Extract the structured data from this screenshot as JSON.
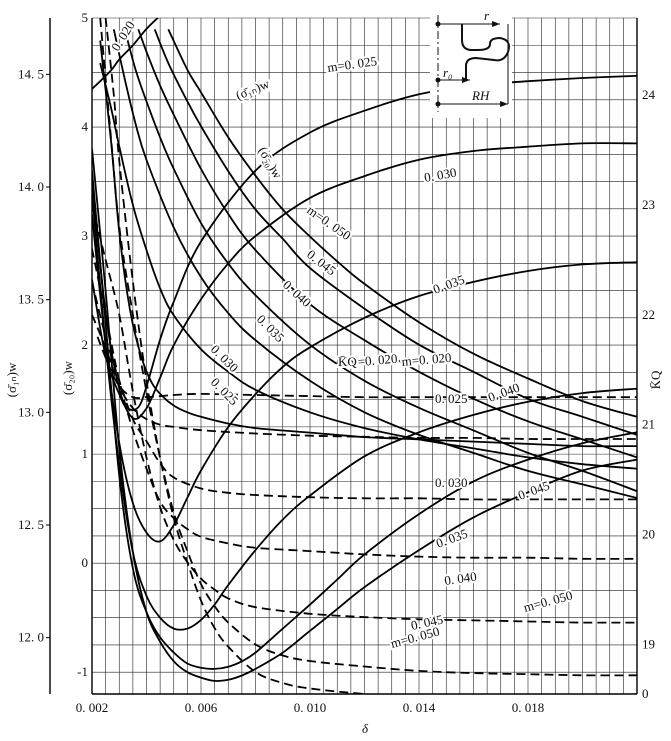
{
  "chart_data": {
    "type": "line",
    "x": {
      "label": "δ",
      "range": [
        0.002,
        0.022
      ],
      "ticks": [
        0.002,
        0.006,
        0.01,
        0.014,
        0.018
      ],
      "tick_labels": [
        "0. 002",
        "0. 006",
        "0. 010",
        "0. 014",
        "0. 018"
      ]
    },
    "axes": {
      "sigma_1n": {
        "label": "(σ̄₁ₙ)w",
        "range": [
          11.75,
          14.75
        ],
        "ticks": [
          12.0,
          12.5,
          13.0,
          13.5,
          14.0,
          14.5
        ],
        "tick_labels": [
          "12. 0",
          "12. 5",
          "13. 0",
          "13. 5",
          "14. 0",
          "14. 5"
        ]
      },
      "sigma_20": {
        "label": "(σ̄₂₀)w",
        "range": [
          -1.2,
          5
        ],
        "ticks": [
          -1,
          0,
          1,
          2,
          3,
          4,
          5
        ],
        "tick_labels": [
          "-1",
          "0",
          "1",
          "2",
          "3",
          "4",
          "5"
        ]
      },
      "KQ": {
        "label": "K̄Q",
        "range": [
          18.55,
          24.7
        ],
        "ticks": [
          19,
          20,
          21,
          22,
          23,
          24
        ],
        "tick_labels": [
          "19",
          "20",
          "21",
          "22",
          "23",
          "24"
        ],
        "extra_label": "0"
      }
    },
    "grid": true,
    "series": [
      {
        "name": "(σ̄₁ₙ)w m=0.020",
        "axis": "sigma_1n",
        "style": "solid",
        "x": [
          0.0023,
          0.0027,
          0.003,
          0.0034,
          0.0038,
          0.0042,
          0.0046,
          0.005,
          0.0055,
          0.006,
          0.007,
          0.008,
          0.01,
          0.012,
          0.014,
          0.016,
          0.018,
          0.02,
          0.022
        ],
        "y": [
          14.65,
          14.2,
          13.8,
          13.45,
          13.25,
          13.13,
          13.07,
          13.03,
          13.0,
          12.98,
          12.95,
          12.93,
          12.91,
          12.89,
          12.88,
          12.87,
          12.86,
          12.85,
          12.85
        ]
      },
      {
        "name": "(σ̄₁ₙ)w m=0.025",
        "axis": "sigma_1n",
        "style": "solid",
        "x": [
          0.0023,
          0.0027,
          0.003,
          0.0035,
          0.004,
          0.0045,
          0.005,
          0.006,
          0.007,
          0.008,
          0.01,
          0.012,
          0.014,
          0.016,
          0.018,
          0.02,
          0.022
        ],
        "y": [
          14.55,
          14.35,
          14.18,
          13.92,
          13.72,
          13.55,
          13.43,
          13.28,
          13.18,
          13.1,
          13.0,
          12.93,
          12.88,
          12.84,
          12.8,
          12.77,
          12.75
        ]
      },
      {
        "name": "(σ̄₁ₙ)w m=0.030",
        "axis": "sigma_1n",
        "style": "solid",
        "x": [
          0.0028,
          0.0032,
          0.0036,
          0.004,
          0.005,
          0.006,
          0.007,
          0.008,
          0.01,
          0.012,
          0.014,
          0.016,
          0.018,
          0.02,
          0.022
        ],
        "y": [
          14.7,
          14.48,
          14.28,
          14.12,
          13.82,
          13.6,
          13.44,
          13.32,
          13.14,
          13.0,
          12.9,
          12.82,
          12.74,
          12.68,
          12.62
        ]
      },
      {
        "name": "(σ̄₁ₙ)w m=0.035",
        "axis": "sigma_1n",
        "style": "solid",
        "x": [
          0.0032,
          0.0036,
          0.004,
          0.0045,
          0.005,
          0.006,
          0.007,
          0.008,
          0.01,
          0.012,
          0.014,
          0.016,
          0.018,
          0.02,
          0.022
        ],
        "y": [
          14.7,
          14.52,
          14.38,
          14.22,
          14.08,
          13.84,
          13.66,
          13.52,
          13.3,
          13.14,
          13.02,
          12.92,
          12.82,
          12.74,
          12.65
        ]
      },
      {
        "name": "(σ̄₁ₙ)w m=0.040",
        "axis": "sigma_1n",
        "style": "solid",
        "x": [
          0.0037,
          0.004,
          0.0045,
          0.005,
          0.006,
          0.007,
          0.008,
          0.01,
          0.012,
          0.014,
          0.016,
          0.018,
          0.02,
          0.022
        ],
        "y": [
          14.7,
          14.6,
          14.45,
          14.32,
          14.08,
          13.88,
          13.72,
          13.48,
          13.32,
          13.18,
          13.06,
          12.96,
          12.88,
          12.8
        ]
      },
      {
        "name": "(σ̄₁ₙ)w m=0.045",
        "axis": "sigma_1n",
        "style": "solid",
        "x": [
          0.0043,
          0.0048,
          0.0055,
          0.006,
          0.007,
          0.008,
          0.009,
          0.01,
          0.012,
          0.014,
          0.016,
          0.018,
          0.02,
          0.022
        ],
        "y": [
          14.7,
          14.55,
          14.38,
          14.27,
          14.07,
          13.9,
          13.77,
          13.64,
          13.46,
          13.3,
          13.18,
          13.06,
          12.98,
          12.9
        ]
      },
      {
        "name": "(σ̄₁ₙ)w m=0.050",
        "axis": "sigma_1n",
        "style": "solid",
        "x": [
          0.0048,
          0.0055,
          0.006,
          0.007,
          0.008,
          0.009,
          0.01,
          0.011,
          0.012,
          0.014,
          0.016,
          0.018,
          0.02,
          0.022
        ],
        "y": [
          14.7,
          14.52,
          14.42,
          14.22,
          14.05,
          13.9,
          13.78,
          13.67,
          13.57,
          13.4,
          13.26,
          13.15,
          13.05,
          12.98
        ]
      },
      {
        "name": "(σ̄₂₀)w m=0.020",
        "axis": "sigma_20",
        "style": "solid",
        "x": [
          0.002,
          0.0025,
          0.003,
          0.0033,
          0.0037,
          0.004,
          0.0045,
          0.005,
          0.006,
          0.008,
          0.01,
          0.012,
          0.014,
          0.016,
          0.018,
          0.02,
          0.022
        ],
        "y": [
          2.6,
          1.9,
          1.55,
          1.42,
          1.43,
          1.62,
          2.05,
          2.4,
          2.95,
          3.6,
          3.95,
          4.15,
          4.3,
          4.38,
          4.42,
          4.45,
          4.47
        ]
      },
      {
        "name": "(σ̄₂₀)w m=0.025",
        "axis": "sigma_20",
        "style": "solid",
        "x": [
          0.002,
          0.0023,
          0.0027,
          0.003,
          0.0035,
          0.004,
          0.0045,
          0.005,
          0.0055,
          0.006,
          0.007,
          0.008,
          0.01,
          0.012,
          0.014,
          0.016,
          0.018,
          0.02,
          0.022
        ],
        "y": [
          4.35,
          4.42,
          4.52,
          4.62,
          4.75,
          4.9,
          5.02,
          5.12,
          5.22,
          5.3,
          5.42,
          5.55,
          5.72,
          5.85,
          5.92,
          5.96,
          6.0,
          6.02,
          6.03
        ]
      },
      {
        "name": "(σ̄₂₀)w m=0.030",
        "axis": "sigma_20",
        "style": "solid",
        "x": [
          0.002,
          0.0025,
          0.003,
          0.0035,
          0.004,
          0.0045,
          0.005,
          0.006,
          0.007,
          0.008,
          0.01,
          0.012,
          0.014,
          0.016,
          0.018,
          0.02,
          0.022
        ],
        "y": [
          3.5,
          2.3,
          1.6,
          1.33,
          1.42,
          1.7,
          2.0,
          2.42,
          2.75,
          3.0,
          3.35,
          3.55,
          3.7,
          3.78,
          3.82,
          3.85,
          3.85
        ]
      },
      {
        "name": "(σ̄₂₀)w m=0.035",
        "axis": "sigma_20",
        "style": "solid",
        "x": [
          0.002,
          0.0025,
          0.003,
          0.0035,
          0.004,
          0.0045,
          0.005,
          0.0055,
          0.006,
          0.007,
          0.008,
          0.009,
          0.01,
          0.012,
          0.014,
          0.016,
          0.018,
          0.02,
          0.022
        ],
        "y": [
          3.2,
          2.0,
          1.1,
          0.55,
          0.28,
          0.2,
          0.35,
          0.6,
          0.85,
          1.25,
          1.55,
          1.8,
          1.98,
          2.25,
          2.45,
          2.58,
          2.68,
          2.74,
          2.76
        ]
      },
      {
        "name": "(σ̄₂₀)w m=0.040",
        "axis": "sigma_20",
        "style": "solid",
        "x": [
          0.002,
          0.0025,
          0.003,
          0.0035,
          0.004,
          0.0045,
          0.005,
          0.0055,
          0.006,
          0.0065,
          0.007,
          0.008,
          0.009,
          0.01,
          0.012,
          0.014,
          0.016,
          0.018,
          0.02,
          0.022
        ],
        "y": [
          3.4,
          2.0,
          0.9,
          0.1,
          -0.3,
          -0.5,
          -0.6,
          -0.6,
          -0.52,
          -0.38,
          -0.2,
          0.12,
          0.4,
          0.62,
          0.98,
          1.2,
          1.36,
          1.48,
          1.56,
          1.6
        ]
      },
      {
        "name": "(σ̄₂₀)w m=0.045",
        "axis": "sigma_20",
        "style": "solid",
        "x": [
          0.002,
          0.0025,
          0.003,
          0.0035,
          0.004,
          0.0045,
          0.005,
          0.0055,
          0.006,
          0.0065,
          0.007,
          0.0075,
          0.008,
          0.009,
          0.01,
          0.011,
          0.012,
          0.014,
          0.016,
          0.018,
          0.02,
          0.022
        ],
        "y": [
          3.6,
          2.2,
          0.8,
          -0.05,
          -0.45,
          -0.68,
          -0.82,
          -0.92,
          -0.96,
          -0.97,
          -0.95,
          -0.9,
          -0.82,
          -0.6,
          -0.38,
          -0.15,
          0.08,
          0.45,
          0.75,
          0.95,
          1.1,
          1.2
        ]
      },
      {
        "name": "(σ̄₂₀)w m=0.050",
        "axis": "sigma_20",
        "style": "solid",
        "x": [
          0.002,
          0.0025,
          0.003,
          0.0035,
          0.004,
          0.0045,
          0.005,
          0.0055,
          0.006,
          0.0065,
          0.007,
          0.0075,
          0.008,
          0.009,
          0.01,
          0.011,
          0.012,
          0.014,
          0.016,
          0.018,
          0.02,
          0.022
        ],
        "y": [
          3.8,
          2.5,
          1.05,
          0.1,
          -0.45,
          -0.72,
          -0.9,
          -1.0,
          -1.05,
          -1.08,
          -1.07,
          -1.03,
          -0.97,
          -0.82,
          -0.62,
          -0.42,
          -0.22,
          0.12,
          0.42,
          0.65,
          0.85,
          0.95
        ]
      },
      {
        "name": "K̄Q m=0.020",
        "axis": "KQ",
        "style": "dashed",
        "x": [
          0.0022,
          0.0026,
          0.003,
          0.0035,
          0.004,
          0.005,
          0.006,
          0.008,
          0.01,
          0.012,
          0.014,
          0.016,
          0.018,
          0.02,
          0.022
        ],
        "y": [
          21.8,
          21.55,
          21.35,
          21.25,
          21.25,
          21.27,
          21.28,
          21.27,
          21.26,
          21.25,
          21.25,
          21.25,
          21.25,
          21.25,
          21.25
        ]
      },
      {
        "name": "K̄Q m=0.025",
        "axis": "KQ",
        "style": "dashed",
        "x": [
          0.002,
          0.0025,
          0.003,
          0.0035,
          0.004,
          0.0045,
          0.005,
          0.006,
          0.008,
          0.01,
          0.012,
          0.014,
          0.016,
          0.018,
          0.02,
          0.022
        ],
        "y": [
          22.0,
          21.7,
          21.35,
          21.15,
          21.05,
          21.0,
          20.98,
          20.95,
          20.92,
          20.9,
          20.89,
          20.88,
          20.88,
          20.87,
          20.87,
          20.87
        ]
      },
      {
        "name": "K̄Q m=0.030",
        "axis": "KQ",
        "style": "dashed",
        "x": [
          0.002,
          0.0025,
          0.003,
          0.0035,
          0.004,
          0.0045,
          0.005,
          0.006,
          0.007,
          0.008,
          0.01,
          0.012,
          0.014,
          0.016,
          0.018,
          0.02,
          0.022
        ],
        "y": [
          22.3,
          21.8,
          21.4,
          21.05,
          20.85,
          20.65,
          20.52,
          20.42,
          20.38,
          20.36,
          20.34,
          20.33,
          20.33,
          20.32,
          20.32,
          20.32,
          20.32
        ]
      },
      {
        "name": "K̄Q m=0.035",
        "axis": "KQ",
        "style": "dashed",
        "x": [
          0.002,
          0.0025,
          0.003,
          0.0035,
          0.004,
          0.0045,
          0.005,
          0.0055,
          0.006,
          0.007,
          0.008,
          0.01,
          0.012,
          0.014,
          0.016,
          0.018,
          0.02,
          0.022
        ],
        "y": [
          22.6,
          22.0,
          21.4,
          20.95,
          20.6,
          20.3,
          20.15,
          20.05,
          19.98,
          19.92,
          19.88,
          19.85,
          19.82,
          19.8,
          19.79,
          19.79,
          19.78,
          19.78
        ]
      },
      {
        "name": "K̄Q m=0.040",
        "axis": "KQ",
        "style": "dashed",
        "x": [
          0.002,
          0.0025,
          0.003,
          0.0035,
          0.004,
          0.0045,
          0.005,
          0.0055,
          0.006,
          0.0065,
          0.007,
          0.008,
          0.01,
          0.012,
          0.014,
          0.016,
          0.018,
          0.02,
          0.022
        ],
        "y": [
          23.0,
          22.5,
          22.0,
          21.3,
          20.7,
          20.25,
          19.95,
          19.75,
          19.6,
          19.5,
          19.42,
          19.34,
          19.28,
          19.25,
          19.23,
          19.22,
          19.21,
          19.2,
          19.2
        ]
      },
      {
        "name": "K̄Q m=0.045",
        "axis": "KQ",
        "style": "dashed",
        "x": [
          0.0023,
          0.0027,
          0.003,
          0.0035,
          0.004,
          0.0045,
          0.005,
          0.0055,
          0.006,
          0.0065,
          0.007,
          0.008,
          0.009,
          0.01,
          0.012,
          0.014,
          0.016,
          0.018,
          0.02,
          0.022
        ],
        "y": [
          24.7,
          23.6,
          22.8,
          22.0,
          21.3,
          20.7,
          20.2,
          19.85,
          19.55,
          19.35,
          19.2,
          19.0,
          18.9,
          18.85,
          18.8,
          18.76,
          18.74,
          18.73,
          18.72,
          18.72
        ]
      },
      {
        "name": "K̄Q m=0.050",
        "axis": "KQ",
        "style": "dashed",
        "x": [
          0.0025,
          0.0028,
          0.003,
          0.0035,
          0.004,
          0.0045,
          0.005,
          0.0055,
          0.006,
          0.0065,
          0.007,
          0.008,
          0.009,
          0.01,
          0.012,
          0.014,
          0.016,
          0.018,
          0.02,
          0.022
        ],
        "y": [
          24.7,
          24.0,
          23.4,
          22.3,
          21.4,
          20.7,
          20.15,
          19.75,
          19.4,
          19.15,
          18.98,
          18.75,
          18.65,
          18.6,
          18.55,
          18.52,
          18.5,
          18.48,
          18.47,
          18.47
        ]
      }
    ],
    "annotations": [
      {
        "text": "m=0. 025",
        "anchor": "sigma_1n m=0.025"
      },
      {
        "text": "(σ̄₁ₙ)w",
        "anchor": "sigma_1n group"
      },
      {
        "text": "(σ̄₂₀)w",
        "anchor": "sigma_20 group"
      },
      {
        "text": "0. 020",
        "anchor": "sigma_1n m=0.020 top"
      },
      {
        "text": "0. 030",
        "anchor": "sigma_20 m=0.030"
      },
      {
        "text": "m=0. 050",
        "anchor": "sigma_1n m=0.050"
      },
      {
        "text": "0. 045",
        "anchor": "sigma_1n m=0.045"
      },
      {
        "text": "0. 040",
        "anchor": "sigma_1n m=0.040"
      },
      {
        "text": "0. 035",
        "anchor": "sigma_1n m=0.035"
      },
      {
        "text": "0. 030",
        "anchor": "sigma_1n m=0.030"
      },
      {
        "text": "0. 025",
        "anchor": "sigma_1n m=0.025"
      },
      {
        "text": "m=0. 020",
        "anchor": "sigma_20 m=0.020"
      },
      {
        "text": "0. 035",
        "anchor": "sigma_20 m=0.035"
      },
      {
        "text": "K̄Q",
        "anchor": "KQ group"
      },
      {
        "text": "m=0. 020",
        "anchor": "KQ m=0.020"
      },
      {
        "text": "0. 040",
        "anchor": "sigma_20 m=0.040"
      },
      {
        "text": "0. 025",
        "anchor": "KQ m=0.025"
      },
      {
        "text": "0. 030",
        "anchor": "KQ m=0.030"
      },
      {
        "text": "0. 045",
        "anchor": "sigma_20 m=0.045"
      },
      {
        "text": "0. 035",
        "anchor": "KQ m=0.035"
      },
      {
        "text": "0. 040",
        "anchor": "KQ m=0.040"
      },
      {
        "text": "m=0. 050",
        "anchor": "sigma_20 m=0.050"
      },
      {
        "text": "0. 045",
        "anchor": "KQ m=0.045"
      },
      {
        "text": "m=0. 050",
        "anchor": "KQ m=0.050"
      }
    ],
    "inset_labels": [
      "r",
      "r₀",
      "RH"
    ]
  }
}
